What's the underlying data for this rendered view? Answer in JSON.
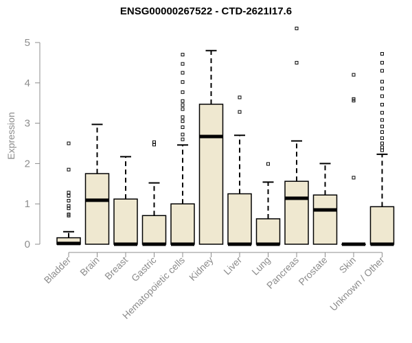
{
  "chart_data": {
    "type": "boxplot",
    "title": "ENSG00000267522 - CTD-2621I17.6",
    "xlabel": "",
    "ylabel": "Expression",
    "ylim": [
      0,
      5.3
    ],
    "yticks": [
      0,
      1,
      2,
      3,
      4,
      5
    ],
    "box_color": "#efe8d0",
    "categories": [
      "Bladder",
      "Brain",
      "Breast",
      "Gastric",
      "Hematopoietic cells",
      "Kidney",
      "Liver",
      "Lung",
      "Pancreas",
      "Prostate",
      "Skin",
      "Unknown / Other"
    ],
    "boxes": [
      {
        "category": "Bladder",
        "min": 0,
        "q1": 0,
        "median": 0.02,
        "q3": 0.16,
        "max": 0.31,
        "outliers": [
          2.5,
          1.85,
          1.28,
          1.2,
          1.08,
          0.95,
          0.89,
          0.74,
          0.71
        ]
      },
      {
        "category": "Brain",
        "min": 0,
        "q1": 0,
        "median": 1.09,
        "q3": 1.75,
        "max": 2.97,
        "outliers": []
      },
      {
        "category": "Breast",
        "min": 0,
        "q1": 0,
        "median": 0,
        "q3": 1.12,
        "max": 2.17,
        "outliers": []
      },
      {
        "category": "Gastric",
        "min": 0,
        "q1": 0,
        "median": 0,
        "q3": 0.71,
        "max": 1.52,
        "outliers": [
          2.53,
          2.47
        ]
      },
      {
        "category": "Hematopoietic cells",
        "min": 0,
        "q1": 0,
        "median": 0,
        "q3": 1.0,
        "max": 2.46,
        "outliers": [
          4.7,
          4.47,
          4.25,
          4.02,
          3.77,
          3.55,
          3.45,
          3.35,
          3.15,
          3.05,
          2.9,
          2.72,
          2.6
        ]
      },
      {
        "category": "Kidney",
        "min": 0,
        "q1": 0,
        "median": 2.67,
        "q3": 3.47,
        "max": 4.8,
        "outliers": []
      },
      {
        "category": "Liver",
        "min": 0,
        "q1": 0,
        "median": 0,
        "q3": 1.25,
        "max": 2.7,
        "outliers": [
          3.64,
          3.28
        ]
      },
      {
        "category": "Lung",
        "min": 0,
        "q1": 0,
        "median": 0,
        "q3": 0.63,
        "max": 1.54,
        "outliers": [
          1.99
        ]
      },
      {
        "category": "Pancreas",
        "min": 0,
        "q1": 0,
        "median": 1.14,
        "q3": 1.56,
        "max": 2.56,
        "outliers": [
          5.35,
          4.5
        ]
      },
      {
        "category": "Prostate",
        "min": 0,
        "q1": 0,
        "median": 0.85,
        "q3": 1.22,
        "max": 2.0,
        "outliers": []
      },
      {
        "category": "Skin",
        "min": 0,
        "q1": 0,
        "median": 0,
        "q3": 0,
        "max": 0,
        "outliers": [
          4.2,
          3.6,
          3.56,
          1.65
        ]
      },
      {
        "category": "Unknown / Other",
        "min": 0,
        "q1": 0,
        "median": 0,
        "q3": 0.93,
        "max": 2.23,
        "outliers": [
          4.72,
          4.5,
          4.3,
          4.03,
          3.86,
          3.67,
          3.46,
          3.26,
          3.08,
          2.92,
          2.78,
          2.63,
          2.5,
          2.4,
          2.33
        ]
      }
    ]
  }
}
